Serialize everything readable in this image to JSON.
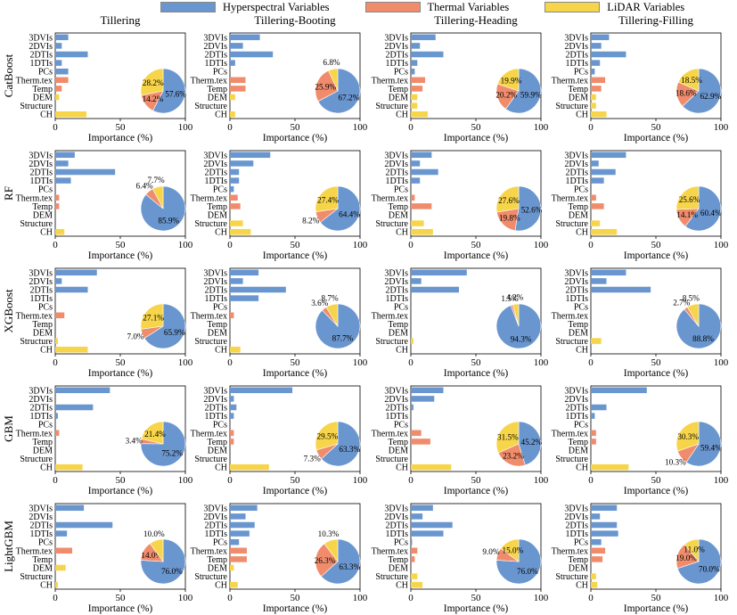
{
  "legend": [
    {
      "label": "Hyperspectral Variables",
      "color": "#6a96cf"
    },
    {
      "label": "Thermal Variables",
      "color": "#f08c6c"
    },
    {
      "label": "LiDAR Variables",
      "color": "#f7d54a"
    }
  ],
  "column_titles": [
    "Tillering",
    "Tillering-Booting",
    "Tillering-Heading",
    "Tillering-Filling"
  ],
  "row_titles": [
    "CatBoost",
    "RF",
    "XGBoost",
    "GBM",
    "LightGBM"
  ],
  "chart_data": {
    "type": "bar",
    "orientation": "horizontal",
    "categories": [
      "3DVIs",
      "2DVIs",
      "2DTIs",
      "1DTIs",
      "PCs",
      "Therm.tex",
      "Temp",
      "DEM",
      "Structure",
      "CH"
    ],
    "category_groups": [
      "hyper",
      "hyper",
      "hyper",
      "hyper",
      "hyper",
      "thermal",
      "thermal",
      "lidar",
      "lidar",
      "lidar"
    ],
    "xlabel": "Importance (%)",
    "xlim": [
      0,
      100
    ],
    "xticks": [
      0,
      50,
      100
    ],
    "pie_order": [
      "Hyperspectral",
      "Thermal",
      "LiDAR"
    ],
    "panels": [
      [
        {
          "values": [
            10,
            5,
            25,
            5,
            10,
            10,
            5,
            3,
            0,
            24
          ],
          "pie": [
            57.6,
            14.2,
            28.2
          ],
          "pie_labels": [
            "57.6%",
            "14.2%",
            "28.2%"
          ]
        },
        {
          "values": [
            23,
            10,
            33,
            4,
            0,
            12,
            12,
            4,
            0,
            4
          ],
          "pie": [
            67.2,
            25.9,
            6.8
          ],
          "pie_labels": [
            "67.2%",
            "25.9%",
            "6.8%"
          ]
        },
        {
          "values": [
            19,
            7,
            25,
            5,
            3,
            11,
            9,
            5,
            5,
            13
          ],
          "pie": [
            59.9,
            20.2,
            19.9
          ],
          "pie_labels": [
            "59.9%",
            "20.2%",
            "19.9%"
          ]
        },
        {
          "values": [
            14,
            8,
            27,
            7,
            3,
            11,
            8,
            4,
            4,
            12
          ],
          "pie": [
            62.9,
            18.6,
            18.5
          ],
          "pie_labels": [
            "62.9%",
            "18.6%",
            "18.5%"
          ]
        }
      ],
      [
        {
          "values": [
            15,
            10,
            46,
            12,
            0,
            3,
            3,
            0,
            0,
            7
          ],
          "pie": [
            85.9,
            6.4,
            7.7
          ],
          "pie_labels": [
            "85.9%",
            "6.4%",
            "7.7%"
          ]
        },
        {
          "values": [
            31,
            18,
            7,
            7,
            3,
            6,
            8,
            0,
            10,
            16
          ],
          "pie": [
            64.4,
            8.2,
            27.4
          ],
          "pie_labels": [
            "64.4%",
            "8.2%",
            "27.4%"
          ]
        },
        {
          "values": [
            16,
            7,
            21,
            7,
            0,
            3,
            16,
            0,
            10,
            17
          ],
          "pie": [
            52.6,
            19.8,
            27.6
          ],
          "pie_labels": [
            "52.6%",
            "19.8%",
            "27.6%"
          ]
        },
        {
          "values": [
            27,
            6,
            19,
            10,
            0,
            4,
            10,
            0,
            7,
            20
          ],
          "pie": [
            60.4,
            14.1,
            25.6
          ],
          "pie_labels": [
            "60.4%",
            "14.1%",
            "25.6%"
          ]
        }
      ],
      [
        {
          "values": [
            32,
            5,
            25,
            0,
            0,
            7,
            0,
            0,
            2,
            25
          ],
          "pie": [
            65.9,
            7.0,
            27.1
          ],
          "pie_labels": [
            "65.9%",
            "7.0%",
            "27.1%"
          ]
        },
        {
          "values": [
            22,
            10,
            43,
            22,
            0,
            3,
            0,
            0,
            0,
            8
          ],
          "pie": [
            87.7,
            3.6,
            8.7
          ],
          "pie_labels": [
            "87.7%",
            "3.6%",
            "8.7%"
          ]
        },
        {
          "values": [
            43,
            8,
            37,
            0,
            0,
            0,
            0,
            0,
            2,
            0
          ],
          "pie": [
            94.3,
            1.5,
            4.2
          ],
          "pie_labels": [
            "94.3%",
            "1.5%",
            "4.2%"
          ]
        },
        {
          "values": [
            27,
            12,
            46,
            0,
            0,
            0,
            0,
            0,
            8,
            0
          ],
          "pie": [
            88.8,
            2.7,
            8.5
          ],
          "pie_labels": [
            "88.8%",
            "2.7%",
            "8.5%"
          ]
        }
      ],
      [
        {
          "values": [
            42,
            0,
            29,
            2,
            0,
            3,
            0,
            0,
            0,
            21
          ],
          "pie": [
            75.2,
            3.4,
            21.4
          ],
          "pie_labels": [
            "75.2%",
            "3.4%",
            "21.4%"
          ]
        },
        {
          "values": [
            48,
            3,
            5,
            3,
            0,
            3,
            3,
            0,
            0,
            30
          ],
          "pie": [
            63.3,
            7.3,
            29.5
          ],
          "pie_labels": [
            "63.3%",
            "7.3%",
            "29.5%"
          ]
        },
        {
          "values": [
            25,
            18,
            2,
            0,
            0,
            8,
            15,
            0,
            0,
            31
          ],
          "pie": [
            45.2,
            23.2,
            31.5
          ],
          "pie_labels": [
            "45.2%",
            "23.2%",
            "31.5%"
          ]
        },
        {
          "values": [
            43,
            0,
            12,
            3,
            0,
            4,
            4,
            0,
            0,
            29
          ],
          "pie": [
            59.4,
            10.3,
            30.3
          ],
          "pie_labels": [
            "59.4%",
            "10.3%",
            "30.3%"
          ]
        }
      ],
      [
        {
          "values": [
            22,
            0,
            44,
            9,
            0,
            13,
            0,
            8,
            0,
            2
          ],
          "pie": [
            76.0,
            14.0,
            10.0
          ],
          "pie_labels": [
            "76.0%",
            "14.0%",
            "10.0%"
          ]
        },
        {
          "values": [
            21,
            12,
            19,
            15,
            7,
            13,
            13,
            3,
            0,
            6
          ],
          "pie": [
            63.3,
            26.3,
            10.3
          ],
          "pie_labels": [
            "63.3%",
            "26.3%",
            "10.3%"
          ]
        },
        {
          "values": [
            17,
            9,
            32,
            25,
            1,
            5,
            3,
            0,
            5,
            9
          ],
          "pie": [
            76.0,
            9.0,
            15.0
          ],
          "pie_labels": [
            "76.0%",
            "9.0%",
            "15.0%"
          ]
        },
        {
          "values": [
            20,
            7,
            20,
            21,
            8,
            11,
            9,
            0,
            4,
            5
          ],
          "pie": [
            70.0,
            19.0,
            11.0
          ],
          "pie_labels": [
            "70.0%",
            "19.0%",
            "11.0%"
          ]
        }
      ]
    ]
  }
}
